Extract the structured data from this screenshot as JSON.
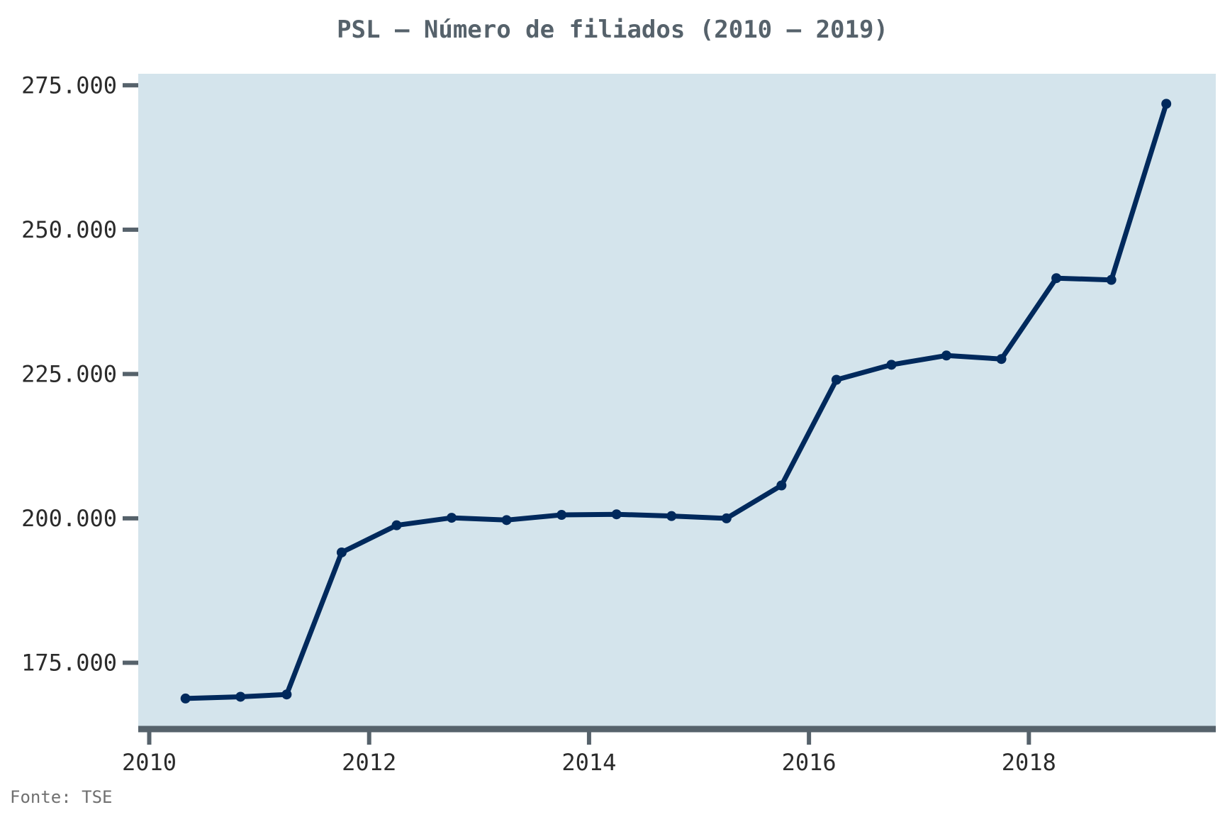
{
  "chart_data": {
    "type": "line",
    "title": "PSL – Número de filiados (2010 – 2019)",
    "xlabel": "",
    "ylabel": "",
    "source": "Fonte: TSE",
    "x_tick_labels": [
      "2010",
      "2012",
      "2014",
      "2016",
      "2018"
    ],
    "y_tick_labels": [
      "175.000",
      "200.000",
      "225.000",
      "250.000",
      "275.000"
    ],
    "x_ticks": [
      2010,
      2012,
      2014,
      2016,
      2018
    ],
    "y_ticks": [
      175000,
      200000,
      225000,
      250000,
      275000
    ],
    "xlim": [
      2009.9,
      2019.7
    ],
    "ylim": [
      164000,
      277000
    ],
    "grid": false,
    "colors": {
      "line": "#00295c",
      "plot_background": "#d4e4ec",
      "axis": "#56626b"
    },
    "series": [
      {
        "x": [
          2010.33,
          2010.83,
          2011.25,
          2011.75,
          2012.25,
          2012.75,
          2013.25,
          2013.75,
          2014.25,
          2014.75,
          2015.25,
          2015.75,
          2016.25,
          2016.75,
          2017.25,
          2017.75,
          2018.25,
          2018.75,
          2019.25
        ],
        "values": [
          168800,
          169100,
          169500,
          194100,
          198800,
          200100,
          199700,
          200600,
          200700,
          200400,
          200000,
          205700,
          224000,
          226600,
          228200,
          227600,
          241600,
          241300,
          271800
        ]
      }
    ]
  }
}
